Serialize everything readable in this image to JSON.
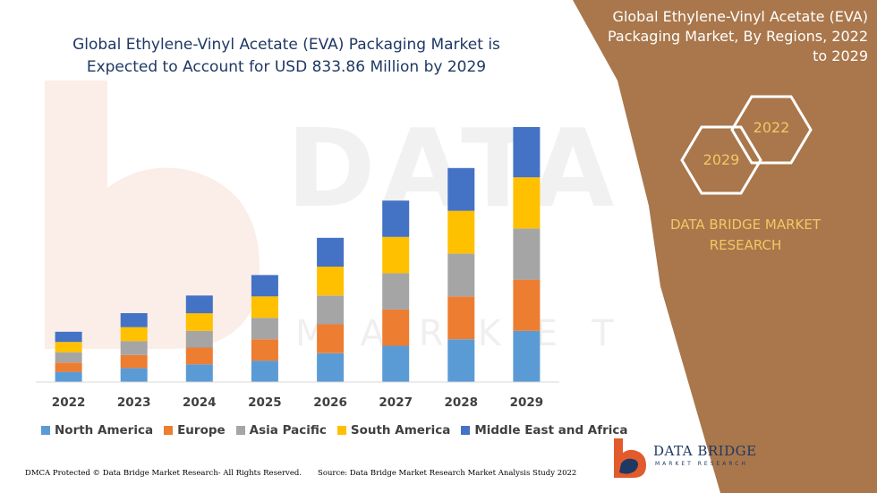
{
  "header": {
    "title": "Global Ethylene-Vinyl Acetate (EVA) Packaging Market is Expected to Account for USD 833.86 Million by 2029"
  },
  "side_panel": {
    "title": "Global Ethylene-Vinyl Acetate (EVA) Packaging Market, By Regions, 2022 to 2029",
    "hex_labels": [
      "2022",
      "2029"
    ],
    "brand": "DATA BRIDGE MARKET RESEARCH",
    "panel_color": "#A9774B",
    "accent_color": "#F3C766"
  },
  "logo": {
    "name": "DATA BRIDGE",
    "subtitle": "MARKET RESEARCH"
  },
  "footer": {
    "left": "DMCA Protected © Data Bridge Market Research- All Rights Reserved.",
    "right": "Source: Data Bridge Market Research Market Analysis Study 2022"
  },
  "chart_data": {
    "type": "bar",
    "stacked": true,
    "categories": [
      "2022",
      "2023",
      "2024",
      "2025",
      "2026",
      "2027",
      "2028",
      "2029"
    ],
    "series": [
      {
        "name": "North America",
        "color": "#5B9BD5",
        "values": [
          11,
          15,
          19,
          23,
          31,
          39,
          46,
          55
        ]
      },
      {
        "name": "Europe",
        "color": "#ED7D31",
        "values": [
          10,
          14,
          18,
          23,
          31,
          39,
          46,
          55
        ]
      },
      {
        "name": "Asia Pacific",
        "color": "#A5A5A5",
        "values": [
          11,
          15,
          18,
          23,
          31,
          39,
          46,
          55
        ]
      },
      {
        "name": "South America",
        "color": "#FFC000",
        "values": [
          11,
          15,
          19,
          23,
          31,
          39,
          46,
          55
        ]
      },
      {
        "name": "Middle East and Africa",
        "color": "#4472C4",
        "values": [
          11,
          15,
          19,
          23,
          31,
          39,
          46,
          54
        ]
      }
    ],
    "xlabel": "",
    "ylabel": "",
    "ylim": [
      0,
      275
    ],
    "grid": false,
    "legend": "bottom"
  }
}
